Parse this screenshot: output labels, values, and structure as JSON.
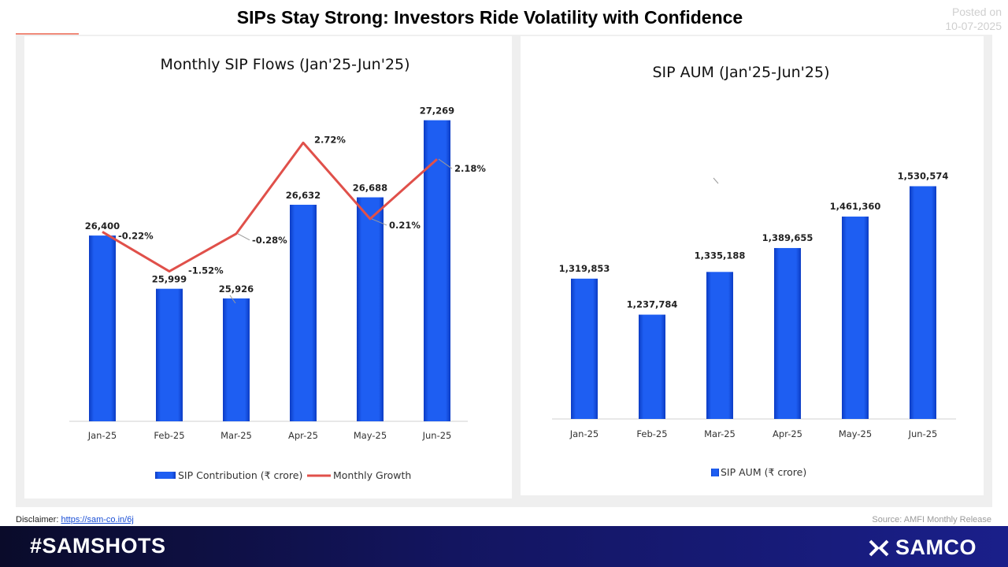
{
  "page": {
    "title": "SIPs Stay Strong: Investors Ride Volatility with Confidence",
    "posted_label": "Posted on",
    "posted_date": "10-07-2025",
    "disclaimer_label": "Disclaimer:",
    "disclaimer_link": "https://sam-co.in/6j",
    "source": "Source: AMFI Monthly Release",
    "hashtag": "#SAMSHOTS",
    "brand": "SAMCO",
    "colors": {
      "bar": "#1e5ef2",
      "bar_dark": "#0c3cc4",
      "line": "#e0504a",
      "footer": "#131560"
    }
  },
  "chart_data": [
    {
      "type": "bar",
      "title": "Monthly SIP Flows (Jan'25-Jun'25)",
      "categories": [
        "Jan-25",
        "Feb-25",
        "Mar-25",
        "Apr-25",
        "May-25",
        "Jun-25"
      ],
      "series": [
        {
          "name": "SIP Contribution (₹ crore)",
          "type": "bar",
          "values": [
            26400,
            25999,
            25926,
            26632,
            26688,
            27269
          ],
          "labels": [
            "26,400",
            "25,999",
            "25,926",
            "26,632",
            "26,688",
            "27,269"
          ]
        },
        {
          "name": "Monthly Growth",
          "type": "line",
          "unit": "%",
          "values": [
            -0.22,
            -1.52,
            -0.28,
            2.72,
            0.21,
            2.18
          ],
          "labels": [
            "-0.22%",
            "-1.52%",
            "-0.28%",
            "2.72%",
            "0.21%",
            "2.18%"
          ]
        }
      ],
      "legend": "bottom",
      "grid": false
    },
    {
      "type": "bar",
      "title": "SIP AUM (Jan'25-Jun'25)",
      "categories": [
        "Jan-25",
        "Feb-25",
        "Mar-25",
        "Apr-25",
        "May-25",
        "Jun-25"
      ],
      "series": [
        {
          "name": "SIP AUM  (₹ crore)",
          "type": "bar",
          "values": [
            1319853,
            1237784,
            1335188,
            1389655,
            1461360,
            1530574
          ],
          "labels": [
            "1,319,853",
            "1,237,784",
            "1,335,188",
            "1,389,655",
            "1,461,360",
            "1,530,574"
          ]
        }
      ],
      "legend": "bottom",
      "grid": false
    }
  ]
}
